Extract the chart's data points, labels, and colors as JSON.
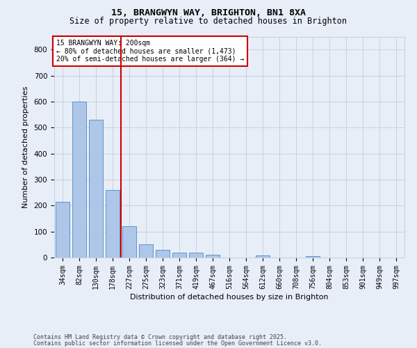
{
  "title1": "15, BRANGWYN WAY, BRIGHTON, BN1 8XA",
  "title2": "Size of property relative to detached houses in Brighton",
  "xlabel": "Distribution of detached houses by size in Brighton",
  "ylabel": "Number of detached properties",
  "bar_labels": [
    "34sqm",
    "82sqm",
    "130sqm",
    "178sqm",
    "227sqm",
    "275sqm",
    "323sqm",
    "371sqm",
    "419sqm",
    "467sqm",
    "516sqm",
    "564sqm",
    "612sqm",
    "660sqm",
    "708sqm",
    "756sqm",
    "804sqm",
    "853sqm",
    "901sqm",
    "949sqm",
    "997sqm"
  ],
  "bar_values": [
    215,
    600,
    530,
    260,
    120,
    52,
    30,
    20,
    18,
    11,
    0,
    0,
    8,
    0,
    0,
    5,
    0,
    0,
    0,
    0,
    0
  ],
  "bar_color": "#aec6e8",
  "bar_edge_color": "#5a96c8",
  "vline_x_index": 3,
  "vline_color": "#cc0000",
  "annotation_text": "15 BRANGWYN WAY: 200sqm\n← 80% of detached houses are smaller (1,473)\n20% of semi-detached houses are larger (364) →",
  "annotation_box_color": "#ffffff",
  "annotation_box_edge": "#cc0000",
  "ylim": [
    0,
    850
  ],
  "yticks": [
    0,
    100,
    200,
    300,
    400,
    500,
    600,
    700,
    800
  ],
  "footer1": "Contains HM Land Registry data © Crown copyright and database right 2025.",
  "footer2": "Contains public sector information licensed under the Open Government Licence v3.0.",
  "bg_color": "#e8eef8",
  "grid_color": "#c8d0e0"
}
